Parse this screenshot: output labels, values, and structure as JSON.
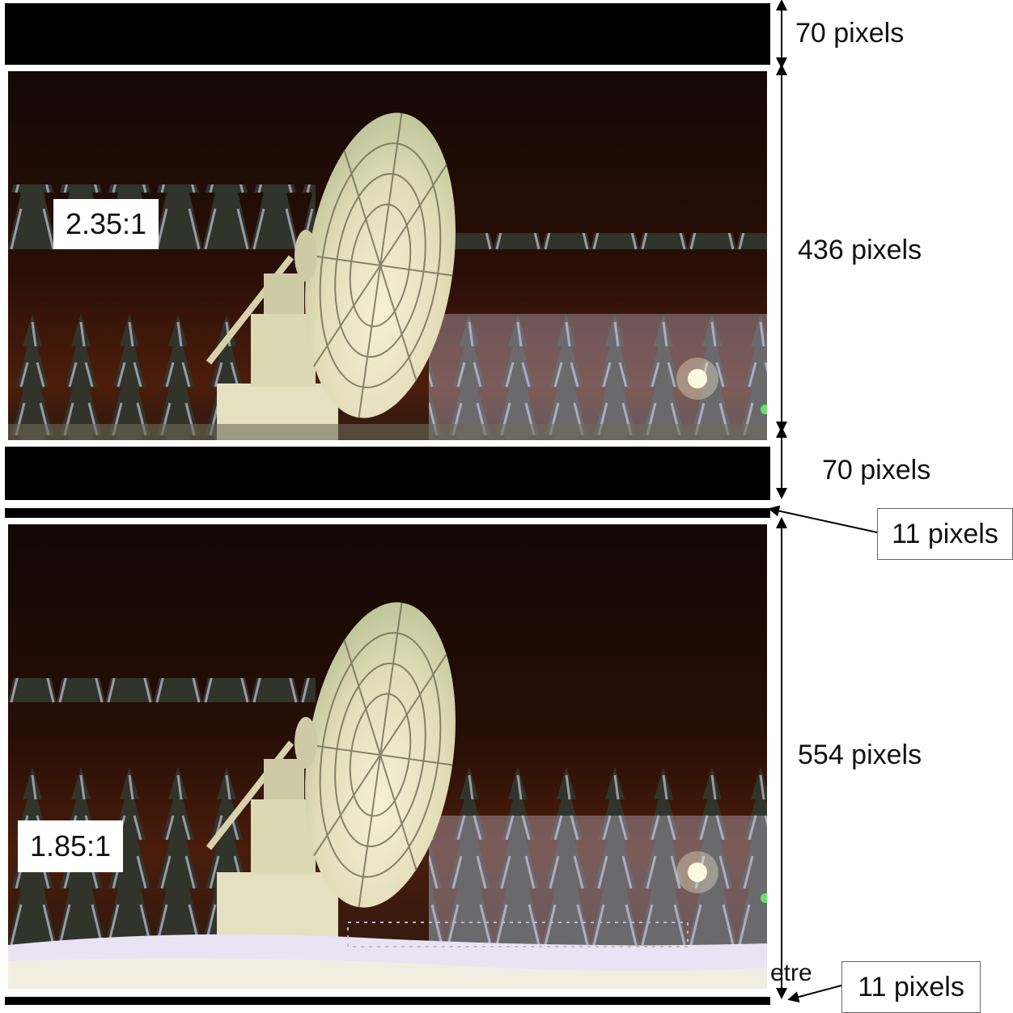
{
  "labels": {
    "top_bar": "70 pixels",
    "image_2_35": "436 pixels",
    "mid_bar": "70 pixels",
    "gap_1": "11 pixels",
    "image_1_85": "554 pixels",
    "gap_2": "11 pixels",
    "partial_text": "etre"
  },
  "ratios": {
    "wide": "2.35:1",
    "flat": "1.85:1"
  },
  "colors": {
    "bar": "#000000",
    "sky_top": "#1a0a06",
    "sky_glow": "#4a1c0c",
    "dish": "#e9e3c4",
    "tree": "#2e3226",
    "snow": "#e6e0f2"
  }
}
